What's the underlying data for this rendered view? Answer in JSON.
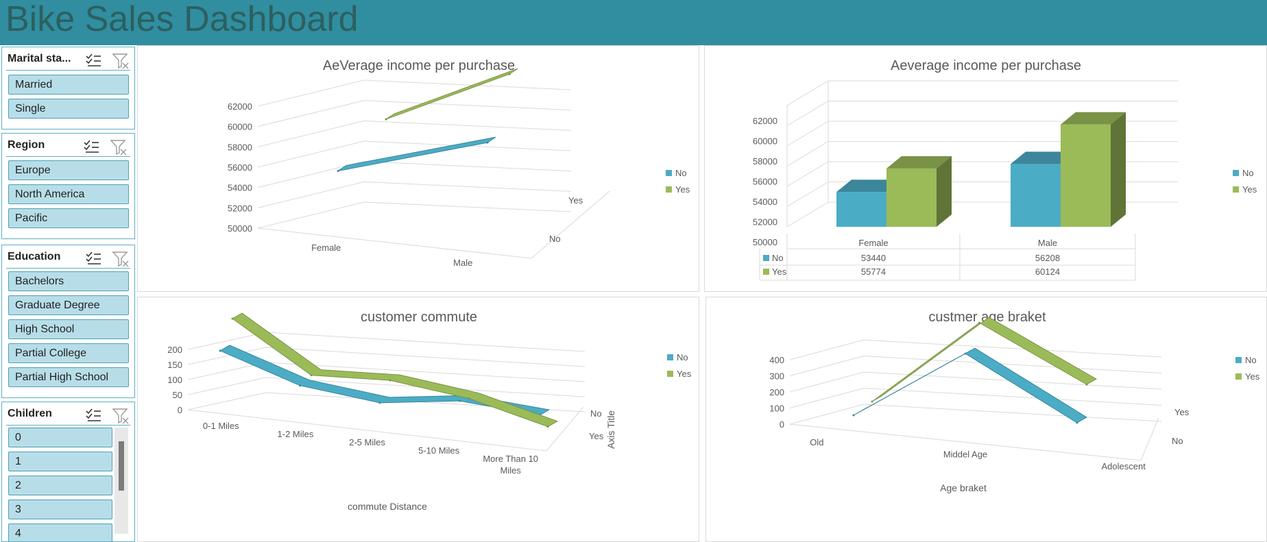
{
  "dashboard": {
    "title": "Bike Sales Dashboard"
  },
  "slicers": [
    {
      "title": "Marital sta...",
      "items": [
        "Married",
        "Single"
      ]
    },
    {
      "title": "Region",
      "items": [
        "Europe",
        "North America",
        "Pacific"
      ]
    },
    {
      "title": "Education",
      "items": [
        "Bachelors",
        "Graduate Degree",
        "High School",
        "Partial College",
        "Partial High School"
      ]
    },
    {
      "title": "Children",
      "items": [
        "0",
        "1",
        "2",
        "3",
        "4"
      ]
    }
  ],
  "icons": {
    "multi_select": "multi-select-icon",
    "clear_filter": "clear-filter-icon"
  },
  "colors": {
    "banner": "#308ea0",
    "title": "#2d5f5f",
    "no": "#4bacc6",
    "yes": "#9bbb59",
    "slicer_item": "#b7dee8"
  },
  "chart_data": [
    {
      "type": "line",
      "title": "AeVerage income per purchase",
      "categories": [
        "Female",
        "Male"
      ],
      "depth_labels": [
        "No",
        "Yes"
      ],
      "series": [
        {
          "name": "No",
          "values": [
            53440,
            56208
          ]
        },
        {
          "name": "Yes",
          "values": [
            55774,
            60124
          ]
        }
      ],
      "yticks": [
        "62000",
        "60000",
        "58000",
        "56000",
        "54000",
        "52000",
        "50000"
      ],
      "ylim": [
        50000,
        62000
      ],
      "legend": "right",
      "grid": true
    },
    {
      "type": "bar",
      "title": "Aeverage income per purchase",
      "categories": [
        "Female",
        "Male"
      ],
      "series": [
        {
          "name": "No",
          "values": [
            53440,
            56208
          ]
        },
        {
          "name": "Yes",
          "values": [
            55774,
            60124
          ]
        }
      ],
      "table": {
        "headers": [
          "Female",
          "Male"
        ],
        "rows": [
          {
            "name": "No",
            "values": [
              "53440",
              "56208"
            ]
          },
          {
            "name": "Yes",
            "values": [
              "55774",
              "60124"
            ]
          }
        ]
      },
      "yticks": [
        "62000",
        "60000",
        "58000",
        "56000",
        "54000",
        "52000",
        "50000"
      ],
      "ylim": [
        50000,
        62000
      ],
      "legend": "right",
      "grid": true
    },
    {
      "type": "line",
      "title": "customer  commute",
      "categories": [
        "0-1 Miles",
        "1-2 Miles",
        "2-5 Miles",
        "5-10 Miles",
        "More Than 10 Miles"
      ],
      "series": [
        {
          "name": "No",
          "values": [
            166,
            92,
            67,
            95,
            78
          ]
        },
        {
          "name": "Yes",
          "values": [
            200,
            76,
            95,
            78,
            33
          ]
        }
      ],
      "depth_labels": [
        "No",
        "Yes"
      ],
      "yticks": [
        "200",
        "150",
        "100",
        "50",
        "0"
      ],
      "ylim": [
        0,
        200
      ],
      "xlabel": "commute Distance",
      "zlabel": "Axis Title",
      "legend": "right",
      "grid": true
    },
    {
      "type": "line",
      "title": "custmer age braket",
      "categories": [
        "Old",
        "Middel Age",
        "Adolescent"
      ],
      "series": [
        {
          "name": "No",
          "values": [
            0,
            318,
            0
          ]
        },
        {
          "name": "Yes",
          "values": [
            0,
            383,
            83
          ]
        }
      ],
      "depth_labels": [
        "No",
        "Yes"
      ],
      "yticks": [
        "400",
        "300",
        "200",
        "100",
        "0"
      ],
      "ylim": [
        0,
        400
      ],
      "xlabel": "Age braket",
      "legend": "right",
      "grid": true
    }
  ]
}
